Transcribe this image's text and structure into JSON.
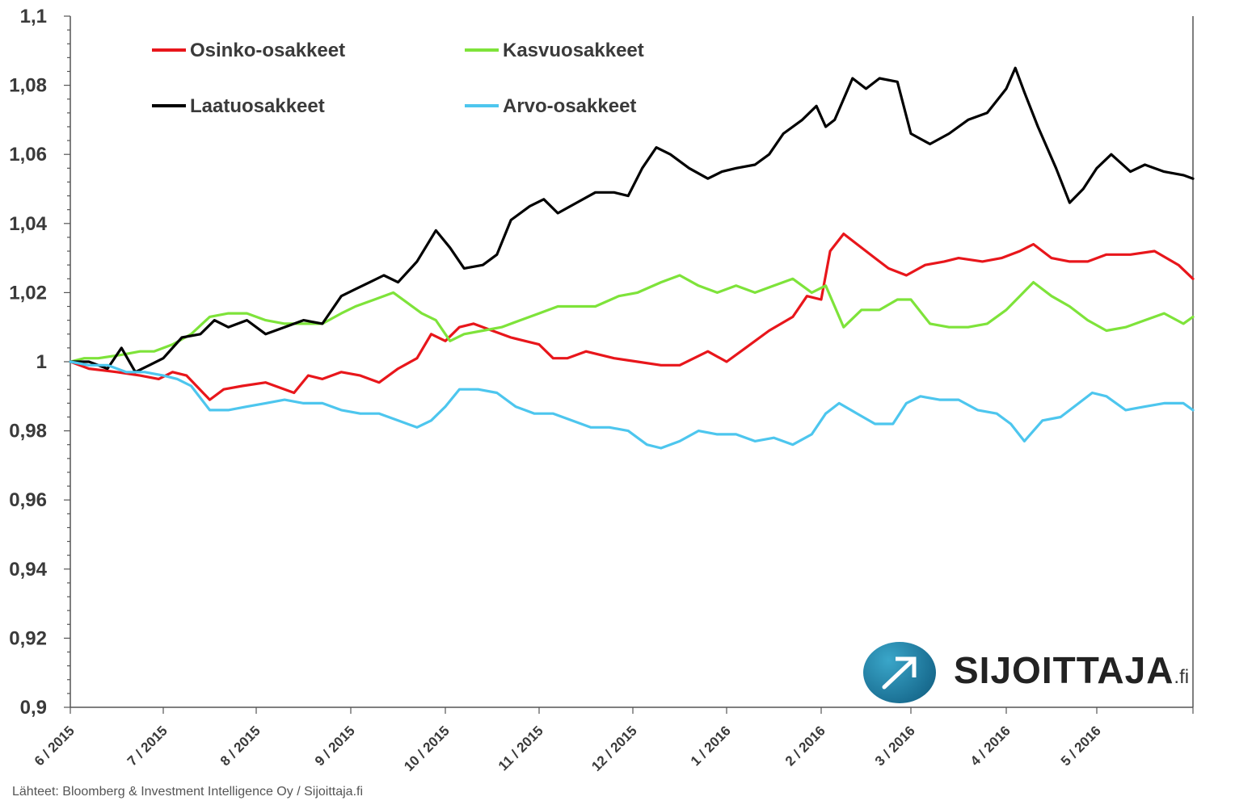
{
  "chart_data": {
    "type": "line",
    "title": "",
    "xlabel": "",
    "ylabel": "",
    "ylim": [
      0.9,
      1.1
    ],
    "yticks": [
      "1,1",
      "1,08",
      "1,06",
      "1,04",
      "1,02",
      "1",
      "0,98",
      "0,96",
      "0,94",
      "0,92",
      "0,9"
    ],
    "ytick_values": [
      1.1,
      1.08,
      1.06,
      1.04,
      1.02,
      1.0,
      0.98,
      0.96,
      0.94,
      0.92,
      0.9
    ],
    "xlim": [
      0,
      12
    ],
    "x_tick_labels": [
      "6 / 2015",
      "7 / 2015",
      "8 / 2015",
      "9 / 2015",
      "10 / 2015",
      "11 / 2015",
      "12 / 2015",
      "1 / 2016",
      "2 / 2016",
      "3 / 2016",
      "4 / 2016",
      "5 / 2016"
    ],
    "x_tick_positions": [
      0,
      1,
      2,
      3,
      4,
      5,
      6,
      7,
      8,
      9,
      10,
      11
    ],
    "grid": false,
    "legend_placement": "top-left",
    "series": [
      {
        "name": "Osinko-osakkeet",
        "color": "#e8161b",
        "x": [
          0,
          0.2,
          0.5,
          0.75,
          0.95,
          1.1,
          1.25,
          1.5,
          1.65,
          1.85,
          2.1,
          2.4,
          2.55,
          2.7,
          2.9,
          3.1,
          3.3,
          3.5,
          3.7,
          3.85,
          4.0,
          4.15,
          4.3,
          4.5,
          4.7,
          4.85,
          5.0,
          5.15,
          5.3,
          5.5,
          5.8,
          6.05,
          6.3,
          6.5,
          6.8,
          7.0,
          7.2,
          7.45,
          7.7,
          7.85,
          8.0,
          8.1,
          8.25,
          8.4,
          8.6,
          8.75,
          8.95,
          9.15,
          9.35,
          9.5,
          9.75,
          9.95,
          10.15,
          10.3,
          10.5,
          10.7,
          10.9,
          11.1,
          11.35,
          11.6,
          11.85,
          12.0
        ],
        "y": [
          1.0,
          0.998,
          0.997,
          0.996,
          0.995,
          0.997,
          0.996,
          0.989,
          0.992,
          0.993,
          0.994,
          0.991,
          0.996,
          0.995,
          0.997,
          0.996,
          0.994,
          0.998,
          1.001,
          1.008,
          1.006,
          1.01,
          1.011,
          1.009,
          1.007,
          1.006,
          1.005,
          1.001,
          1.001,
          1.003,
          1.001,
          1.0,
          0.999,
          0.999,
          1.003,
          1.0,
          1.004,
          1.009,
          1.013,
          1.019,
          1.018,
          1.032,
          1.037,
          1.034,
          1.03,
          1.027,
          1.025,
          1.028,
          1.029,
          1.03,
          1.029,
          1.03,
          1.032,
          1.034,
          1.03,
          1.029,
          1.029,
          1.031,
          1.031,
          1.032,
          1.028,
          1.024
        ]
      },
      {
        "name": "Kasvuosakkeet",
        "color": "#7ee33a",
        "x": [
          0,
          0.15,
          0.3,
          0.55,
          0.75,
          0.9,
          1.1,
          1.3,
          1.5,
          1.7,
          1.9,
          2.1,
          2.3,
          2.5,
          2.7,
          2.9,
          3.05,
          3.25,
          3.45,
          3.6,
          3.75,
          3.9,
          4.05,
          4.2,
          4.4,
          4.6,
          4.8,
          5.0,
          5.2,
          5.4,
          5.6,
          5.85,
          6.05,
          6.3,
          6.5,
          6.7,
          6.9,
          7.1,
          7.3,
          7.5,
          7.7,
          7.9,
          8.05,
          8.25,
          8.45,
          8.65,
          8.85,
          9.0,
          9.2,
          9.4,
          9.6,
          9.8,
          10.0,
          10.15,
          10.3,
          10.5,
          10.7,
          10.9,
          11.1,
          11.3,
          11.5,
          11.7,
          11.9,
          12.0
        ],
        "y": [
          1.0,
          1.001,
          1.001,
          1.002,
          1.003,
          1.003,
          1.005,
          1.008,
          1.013,
          1.014,
          1.014,
          1.012,
          1.011,
          1.011,
          1.011,
          1.014,
          1.016,
          1.018,
          1.02,
          1.017,
          1.014,
          1.012,
          1.006,
          1.008,
          1.009,
          1.01,
          1.012,
          1.014,
          1.016,
          1.016,
          1.016,
          1.019,
          1.02,
          1.023,
          1.025,
          1.022,
          1.02,
          1.022,
          1.02,
          1.022,
          1.024,
          1.02,
          1.022,
          1.01,
          1.015,
          1.015,
          1.018,
          1.018,
          1.011,
          1.01,
          1.01,
          1.011,
          1.015,
          1.019,
          1.023,
          1.019,
          1.016,
          1.012,
          1.009,
          1.01,
          1.012,
          1.014,
          1.011,
          1.013
        ]
      },
      {
        "name": "Laatuosakkeet",
        "color": "#000000",
        "x": [
          0,
          0.2,
          0.4,
          0.55,
          0.7,
          0.85,
          1.0,
          1.2,
          1.4,
          1.55,
          1.7,
          1.9,
          2.1,
          2.3,
          2.5,
          2.7,
          2.9,
          3.05,
          3.2,
          3.35,
          3.5,
          3.7,
          3.9,
          4.05,
          4.2,
          4.4,
          4.55,
          4.7,
          4.9,
          5.05,
          5.2,
          5.4,
          5.6,
          5.8,
          5.95,
          6.1,
          6.25,
          6.4,
          6.6,
          6.8,
          6.95,
          7.1,
          7.3,
          7.45,
          7.6,
          7.8,
          7.95,
          8.05,
          8.15,
          8.35,
          8.5,
          8.65,
          8.85,
          9.0,
          9.2,
          9.4,
          9.6,
          9.8,
          10.0,
          10.1,
          10.2,
          10.35,
          10.55,
          10.7,
          10.85,
          11.0,
          11.15,
          11.35,
          11.5,
          11.7,
          11.9,
          12.0
        ],
        "y": [
          1.0,
          1.0,
          0.998,
          1.004,
          0.997,
          0.999,
          1.001,
          1.007,
          1.008,
          1.012,
          1.01,
          1.012,
          1.008,
          1.01,
          1.012,
          1.011,
          1.019,
          1.021,
          1.023,
          1.025,
          1.023,
          1.029,
          1.038,
          1.033,
          1.027,
          1.028,
          1.031,
          1.041,
          1.045,
          1.047,
          1.043,
          1.046,
          1.049,
          1.049,
          1.048,
          1.056,
          1.062,
          1.06,
          1.056,
          1.053,
          1.055,
          1.056,
          1.057,
          1.06,
          1.066,
          1.07,
          1.074,
          1.068,
          1.07,
          1.082,
          1.079,
          1.082,
          1.081,
          1.066,
          1.063,
          1.066,
          1.07,
          1.072,
          1.079,
          1.085,
          1.078,
          1.068,
          1.056,
          1.046,
          1.05,
          1.056,
          1.06,
          1.055,
          1.057,
          1.055,
          1.054,
          1.053
        ]
      },
      {
        "name": "Arvo-osakkeet",
        "color": "#4dc6ee",
        "x": [
          0,
          0.2,
          0.4,
          0.6,
          0.8,
          1.0,
          1.15,
          1.3,
          1.5,
          1.7,
          1.9,
          2.1,
          2.3,
          2.5,
          2.7,
          2.9,
          3.1,
          3.3,
          3.5,
          3.7,
          3.85,
          4.0,
          4.15,
          4.35,
          4.55,
          4.75,
          4.95,
          5.15,
          5.35,
          5.55,
          5.75,
          5.95,
          6.15,
          6.3,
          6.5,
          6.7,
          6.9,
          7.1,
          7.3,
          7.5,
          7.7,
          7.9,
          8.05,
          8.2,
          8.4,
          8.6,
          8.8,
          8.95,
          9.1,
          9.3,
          9.5,
          9.7,
          9.9,
          10.05,
          10.2,
          10.4,
          10.6,
          10.8,
          10.95,
          11.1,
          11.3,
          11.5,
          11.7,
          11.9,
          12.0
        ],
        "y": [
          1.0,
          0.999,
          0.999,
          0.997,
          0.997,
          0.996,
          0.995,
          0.993,
          0.986,
          0.986,
          0.987,
          0.988,
          0.989,
          0.988,
          0.988,
          0.986,
          0.985,
          0.985,
          0.983,
          0.981,
          0.983,
          0.987,
          0.992,
          0.992,
          0.991,
          0.987,
          0.985,
          0.985,
          0.983,
          0.981,
          0.981,
          0.98,
          0.976,
          0.975,
          0.977,
          0.98,
          0.979,
          0.979,
          0.977,
          0.978,
          0.976,
          0.979,
          0.985,
          0.988,
          0.985,
          0.982,
          0.982,
          0.988,
          0.99,
          0.989,
          0.989,
          0.986,
          0.985,
          0.982,
          0.977,
          0.983,
          0.984,
          0.988,
          0.991,
          0.99,
          0.986,
          0.987,
          0.988,
          0.988,
          0.986
        ]
      }
    ]
  },
  "source_text": "Lähteet: Bloomberg & Investment Intelligence Oy / Sijoittaja.fi",
  "logo": {
    "text": "SIJOITTAJA",
    "suffix": ".fi",
    "icon": "arrow-up-right-icon",
    "color": "#1a6f93"
  }
}
